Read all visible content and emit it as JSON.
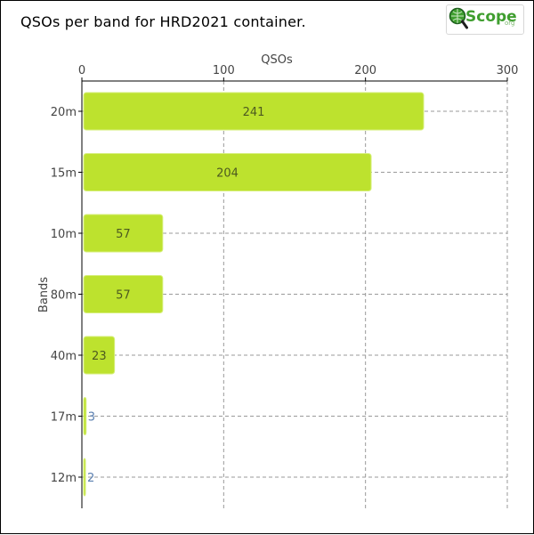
{
  "header": {
    "title": "QSOs per band for HRD2021 container."
  },
  "logo": {
    "word": "Scope",
    "sub": "org",
    "icon": "magnifier-globe-icon",
    "colors": {
      "green": "#3f9e2f",
      "dark": "#1f5f1f"
    }
  },
  "colors": {
    "bar": "#bde22e",
    "bar_edge": "#d6ef7a",
    "grid": "#9a9a9a",
    "text": "#444444",
    "inner_label": "#4d5a20",
    "outer_label": "#5a7fb0"
  },
  "chart_data": {
    "type": "bar",
    "orientation": "horizontal",
    "title": "QSOs per band for HRD2021 container.",
    "xlabel": "QSOs",
    "ylabel": "Bands",
    "x_axis_position": "top",
    "xlim": [
      0,
      300
    ],
    "xticks": [
      0,
      100,
      200,
      300
    ],
    "grid": true,
    "categories": [
      "20m",
      "15m",
      "10m",
      "80m",
      "40m",
      "17m",
      "12m"
    ],
    "values": [
      241,
      204,
      57,
      57,
      23,
      3,
      2
    ]
  }
}
